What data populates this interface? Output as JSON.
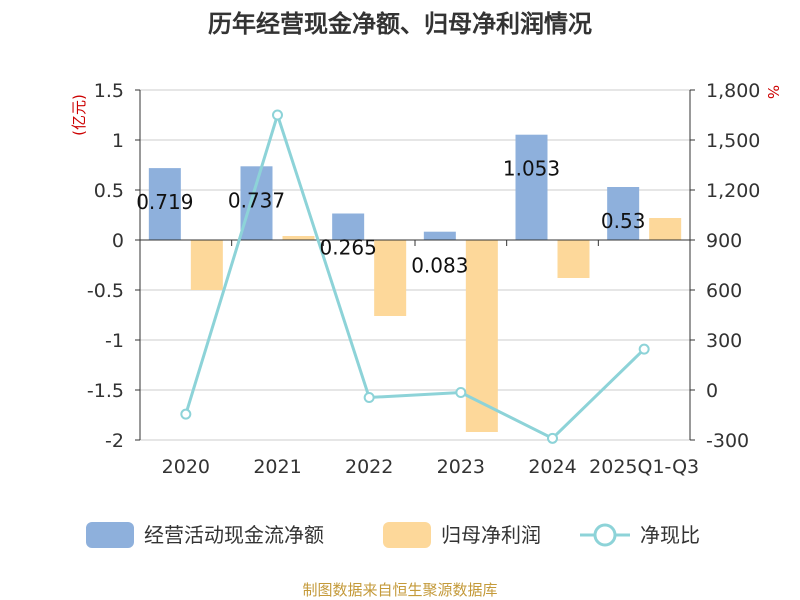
{
  "chart_data": {
    "type": "bar",
    "title": "历年经营现金净额、归母净利润情况",
    "categories": [
      "2020",
      "2021",
      "2022",
      "2023",
      "2024",
      "2025Q1-Q3"
    ],
    "left_axis": {
      "unit": "(亿元)",
      "ylim": [
        -2,
        1.5
      ],
      "ticks": [
        1.5,
        1,
        0.5,
        0,
        -0.5,
        -1,
        -1.5,
        -2
      ],
      "tick_labels": [
        "1.5",
        "1",
        "0.5",
        "0",
        "-0.5",
        "-1",
        "-1.5",
        "-2"
      ]
    },
    "right_axis": {
      "unit": "%",
      "ylim": [
        -300,
        1800
      ],
      "ticks": [
        1800,
        1500,
        1200,
        900,
        600,
        300,
        0,
        -300
      ],
      "tick_labels": [
        "1,800",
        "1,500",
        "1,200",
        "900",
        "600",
        "300",
        "0",
        "-300"
      ]
    },
    "series": [
      {
        "name": "经营活动现金流净额",
        "type": "bar",
        "axis": "left",
        "color": "#8eb0dc",
        "values": [
          0.719,
          0.737,
          0.265,
          0.083,
          1.053,
          0.53
        ],
        "labels": [
          "0.719",
          "0.737",
          "0.265",
          "0.083",
          "1.053",
          "0.53"
        ]
      },
      {
        "name": "归母净利润",
        "type": "bar",
        "axis": "left",
        "color": "#fdd89a",
        "values": [
          -0.5,
          0.04,
          -0.76,
          -1.92,
          -0.38,
          0.22
        ]
      },
      {
        "name": "净现比",
        "type": "line",
        "axis": "right",
        "color": "#8dd3d8",
        "values": [
          -145,
          1650,
          -45,
          -15,
          -290,
          245
        ]
      }
    ],
    "source": "制图数据来自恒生聚源数据库"
  }
}
